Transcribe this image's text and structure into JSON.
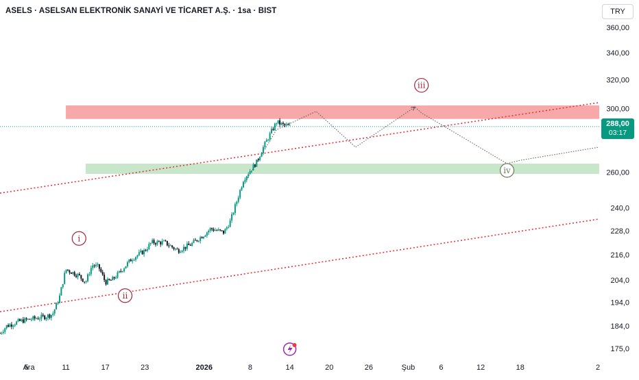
{
  "header": {
    "title": "ASELS · ASELSAN ELEKTRONİK SANAYİ VE TİCARET A.Ş. · 1sa · BIST",
    "currency": "TRY"
  },
  "last_price": {
    "value": "288,00",
    "countdown": "03:17"
  },
  "colors": {
    "up": "#089981",
    "down": "#131722",
    "resistance": "#f7a8a8",
    "support": "#c8e6c9",
    "channel": "#e5323b",
    "projection": "#555555",
    "wave_label": "#a3263a",
    "wave_label_iv": "#6b7b5a",
    "last_price_line": "#089981",
    "event_icon": "#9c27b0"
  },
  "chart_data": {
    "type": "candlestick",
    "symbol": "ASELS",
    "interval": "1sa",
    "exchange": "BIST",
    "y_axis": {
      "scale": "log",
      "ticks": [
        "360,00",
        "340,00",
        "320,00",
        "300,00",
        "260,00",
        "240,0",
        "228,0",
        "216,0",
        "204,0",
        "194,0",
        "184,0",
        "175,0"
      ],
      "range": [
        172,
        370
      ]
    },
    "x_axis": {
      "ticks": [
        "Ara",
        "5",
        "11",
        "17",
        "23",
        "2026",
        "8",
        "14",
        "20",
        "26",
        "Şub",
        "6",
        "12",
        "18",
        "2"
      ],
      "bold_ticks": [
        "2026"
      ],
      "range": [
        "2025-12-01",
        "2026-03-02"
      ]
    },
    "price_path": [
      [
        "2025-12-01",
        181
      ],
      [
        "2025-12-02",
        184
      ],
      [
        "2025-12-04",
        186
      ],
      [
        "2025-12-06",
        187
      ],
      [
        "2025-12-08",
        188
      ],
      [
        "2025-12-09",
        189
      ],
      [
        "2025-12-10",
        196
      ],
      [
        "2025-12-11",
        209
      ],
      [
        "2025-12-13",
        206
      ],
      [
        "2025-12-14",
        203
      ],
      [
        "2025-12-15",
        211
      ],
      [
        "2025-12-16",
        210
      ],
      [
        "2025-12-17",
        203
      ],
      [
        "2025-12-18",
        204
      ],
      [
        "2025-12-19",
        207
      ],
      [
        "2025-12-21",
        214
      ],
      [
        "2025-12-23",
        218
      ],
      [
        "2025-12-24",
        222
      ],
      [
        "2025-12-26",
        222
      ],
      [
        "2025-12-28",
        218
      ],
      [
        "2025-12-30",
        221
      ],
      [
        "2026-01-01",
        226
      ],
      [
        "2026-01-02",
        229
      ],
      [
        "2026-01-04",
        227
      ],
      [
        "2026-01-05",
        233
      ],
      [
        "2026-01-06",
        244
      ],
      [
        "2026-01-07",
        256
      ],
      [
        "2026-01-09",
        266
      ],
      [
        "2026-01-10",
        275
      ],
      [
        "2026-01-11",
        283
      ],
      [
        "2026-01-12",
        291
      ],
      [
        "2026-01-13",
        289
      ],
      [
        "2026-01-14",
        288
      ]
    ],
    "zones": [
      {
        "name": "resistance",
        "from": 293,
        "to": 302,
        "start": "2025-12-11",
        "end": "2026-03-02"
      },
      {
        "name": "support",
        "from": 259,
        "to": 265,
        "start": "2025-12-14",
        "end": "2026-03-02"
      }
    ],
    "channel_lines": [
      {
        "points": [
          [
            "2025-12-01",
            248
          ],
          [
            "2026-03-02",
            304
          ]
        ]
      },
      {
        "points": [
          [
            "2025-12-01",
            190
          ],
          [
            "2026-03-02",
            234
          ]
        ]
      }
    ],
    "projection_path": [
      [
        "2026-01-07",
        253
      ],
      [
        "2026-01-12",
        286
      ],
      [
        "2026-01-18",
        298
      ],
      [
        "2026-01-24",
        275
      ],
      [
        "2026-02-02",
        301
      ],
      [
        "2026-02-03",
        297
      ],
      [
        "2026-02-16",
        265
      ],
      [
        "2026-02-18",
        267
      ],
      [
        "2026-03-02",
        275
      ]
    ],
    "wave_labels": [
      {
        "text": "i",
        "x": "2025-12-13",
        "y": 224
      },
      {
        "text": "ii",
        "x": "2025-12-20",
        "y": 197
      },
      {
        "text": "iii",
        "x": "2026-02-03",
        "y": 316
      },
      {
        "text": "iv",
        "x": "2026-02-16",
        "y": 261
      }
    ],
    "last_price_value": 288,
    "event_marker_date": "2026-01-14"
  }
}
